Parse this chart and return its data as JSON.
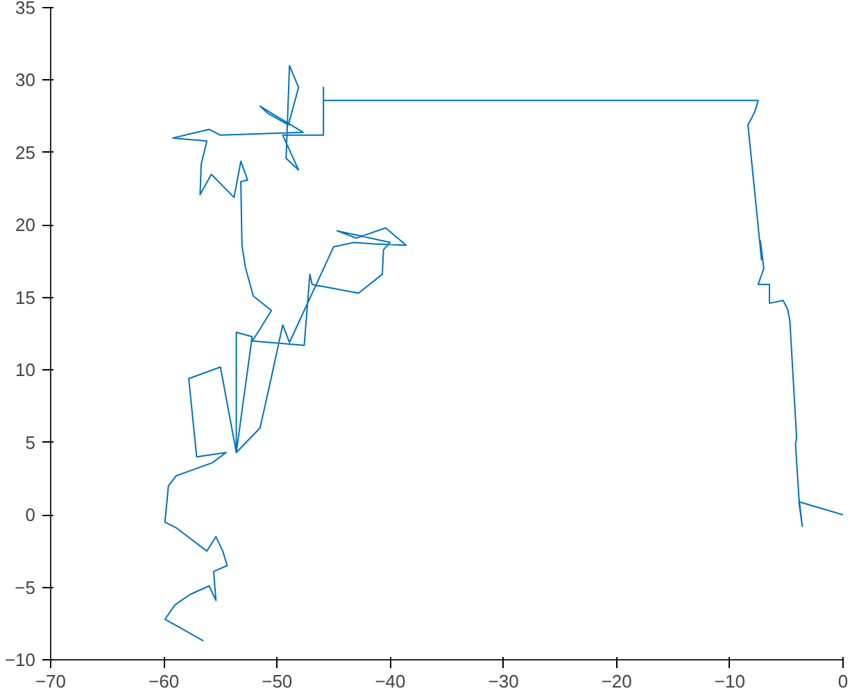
{
  "chart_data": {
    "type": "line",
    "xlim": [
      -70,
      0
    ],
    "ylim": [
      -10,
      35
    ],
    "xticks": [
      -70,
      -60,
      -50,
      -40,
      -30,
      -20,
      -10,
      0
    ],
    "yticks": [
      -10,
      -5,
      0,
      5,
      10,
      15,
      20,
      25,
      30,
      35
    ],
    "grid": false,
    "marker": "none",
    "line_style": "solid",
    "series": [
      {
        "color": "#0072bd",
        "x": [
          0,
          -3.9,
          -3.6,
          -3.9,
          -4.2,
          -4.1,
          -4.7,
          -4.9,
          -5.3,
          -6.5,
          -6.5,
          -7.5,
          -7.0,
          -7.3,
          -7.2,
          -8.4,
          -7.8,
          -7.5,
          -45.9,
          -45.9,
          -45.9,
          -49.5,
          -48.1,
          -49.2,
          -48.9,
          -48.1,
          -49.0,
          -50.8,
          -51.5,
          -47.7,
          -55,
          -56.0,
          -59.2,
          -56.2,
          -56.7,
          -56.8,
          -55.8,
          -53.8,
          -53.2,
          -52.6,
          -53.2,
          -53.1,
          -52.8,
          -52.1,
          -50.5,
          -51.6,
          -52.2,
          -47.6,
          -47.1,
          -46.9,
          -42.8,
          -40.7,
          -40.6,
          -40.0,
          -44.7,
          -43.0,
          -40.4,
          -38.6,
          -41.5,
          -43.2,
          -45.0,
          -48.9,
          -49.5,
          -50.5,
          -51.5,
          -53.6,
          -53.6,
          -52.2,
          -53.6,
          -55,
          -57.8,
          -57.1,
          -54.5,
          -55.7,
          -58.9,
          -59.6,
          -59.9,
          -58.9,
          -56.2,
          -55.4,
          -54.8,
          -54.4,
          -55.6,
          -55.4,
          -56.0,
          -57.7,
          -59.0,
          -59.9,
          -56.5
        ],
        "values": [
          0,
          0.9,
          -0.8,
          1.2,
          4.9,
          5.3,
          13.4,
          14.2,
          14.8,
          14.6,
          15.9,
          15.9,
          17.0,
          18.9,
          17.6,
          26.9,
          27.8,
          28.6,
          28.6,
          29.5,
          26.2,
          26.2,
          23.8,
          24.6,
          31.0,
          29.5,
          26.9,
          27.7,
          28.2,
          26.4,
          26.2,
          26.6,
          26.0,
          25.8,
          24.2,
          22.1,
          23.5,
          21.9,
          24.4,
          23.1,
          23.0,
          18.6,
          17.1,
          15.1,
          14.1,
          12.7,
          12.0,
          11.7,
          16.6,
          15.9,
          15.3,
          16.6,
          18.3,
          18.8,
          19.6,
          19.1,
          19.8,
          18.6,
          18.7,
          18.8,
          18.5,
          11.9,
          13.1,
          9.5,
          6.0,
          4.3,
          12.6,
          12.3,
          4.3,
          10.2,
          9.4,
          4.0,
          4.3,
          3.6,
          2.7,
          2.0,
          -0.5,
          -0.9,
          -2.5,
          -1.5,
          -2.5,
          -3.5,
          -3.9,
          -5.9,
          -4.9,
          -5.5,
          -6.2,
          -7.2,
          -8.7
        ]
      }
    ]
  }
}
